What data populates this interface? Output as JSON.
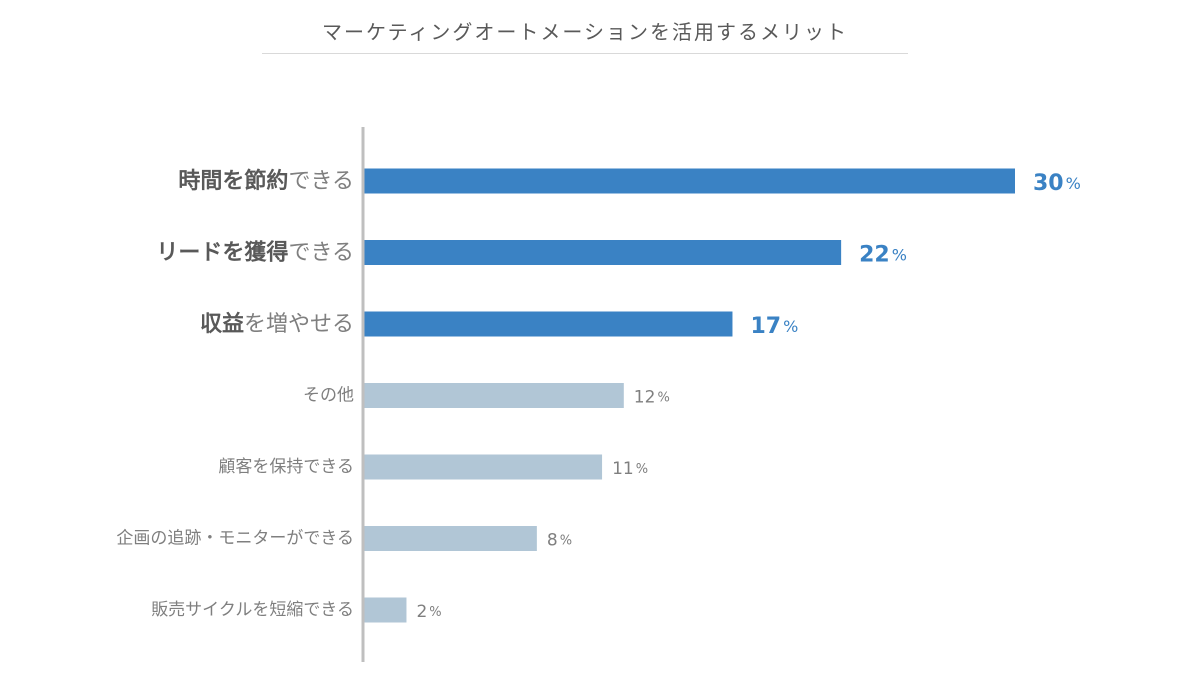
{
  "chart_data": {
    "type": "bar",
    "orientation": "horizontal",
    "title": "マーケティングオートメーションを活用するメリット",
    "categories": [
      "時間を節約できる",
      "リードを獲得できる",
      "収益を増やせる",
      "その他",
      "顧客を保持できる",
      "企画の追跡・モニターができる",
      "販売サイクルを短縮できる"
    ],
    "category_parts": [
      {
        "bold": "時間を節約",
        "normal": "できる"
      },
      {
        "bold": "リードを獲得",
        "normal": "できる"
      },
      {
        "bold": "収益",
        "normal": "を増やせる"
      },
      {
        "bold": "",
        "normal": "その他"
      },
      {
        "bold": "",
        "normal": "顧客を保持できる"
      },
      {
        "bold": "",
        "normal": "企画の追跡・モニターができる"
      },
      {
        "bold": "",
        "normal": "販売サイクルを短縮できる"
      }
    ],
    "values": [
      30,
      22,
      17,
      12,
      11,
      8,
      2
    ],
    "value_labels": [
      "30",
      "22",
      "17",
      "12",
      "11",
      "8",
      "2"
    ],
    "unit": "%",
    "highlighted": [
      true,
      true,
      true,
      false,
      false,
      false,
      false
    ],
    "xlim": [
      0,
      30
    ],
    "grid": false,
    "legend": "none",
    "colors": {
      "highlight_bar": "#3a82c4",
      "normal_bar": "#b1c6d6",
      "highlight_text": "#3a82c4",
      "normal_text": "#7f7f7f",
      "label_bold": "#595959",
      "axis": "#bfbfbf"
    }
  }
}
